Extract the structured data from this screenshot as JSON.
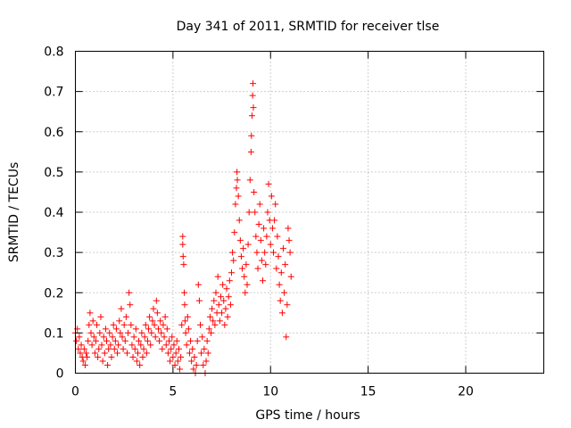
{
  "chart_data": {
    "type": "scatter",
    "title": "Day 341 of 2011, SRMTID for receiver tlse",
    "xlabel": "GPS time / hours",
    "ylabel": "SRMTID / TECUs",
    "xlim": [
      0,
      24
    ],
    "ylim": [
      0,
      0.8
    ],
    "xticks": [
      0,
      5,
      10,
      15,
      20
    ],
    "yticks": [
      0,
      0.1,
      0.2,
      0.3,
      0.4,
      0.5,
      0.6,
      0.7,
      0.8
    ],
    "xtick_labels": [
      "0",
      "5",
      "10",
      "15",
      "20"
    ],
    "ytick_labels": [
      "0",
      "0.1",
      "0.2",
      "0.3",
      "0.4",
      "0.5",
      "0.6",
      "0.7",
      "0.8"
    ],
    "grid": true,
    "marker": "+",
    "marker_color": "#ff0000",
    "series": [
      {
        "name": "SRMTID",
        "points": [
          [
            0.0,
            0.1
          ],
          [
            0.05,
            0.08
          ],
          [
            0.1,
            0.11
          ],
          [
            0.15,
            0.06
          ],
          [
            0.2,
            0.09
          ],
          [
            0.25,
            0.05
          ],
          [
            0.3,
            0.07
          ],
          [
            0.35,
            0.04
          ],
          [
            0.4,
            0.03
          ],
          [
            0.45,
            0.06
          ],
          [
            0.5,
            0.02
          ],
          [
            0.55,
            0.05
          ],
          [
            0.6,
            0.04
          ],
          [
            0.65,
            0.08
          ],
          [
            0.7,
            0.12
          ],
          [
            0.75,
            0.15
          ],
          [
            0.8,
            0.1
          ],
          [
            0.85,
            0.07
          ],
          [
            0.9,
            0.13
          ],
          [
            0.95,
            0.09
          ],
          [
            1.0,
            0.05
          ],
          [
            1.05,
            0.08
          ],
          [
            1.1,
            0.12
          ],
          [
            1.15,
            0.04
          ],
          [
            1.2,
            0.06
          ],
          [
            1.25,
            0.1
          ],
          [
            1.3,
            0.14
          ],
          [
            1.35,
            0.07
          ],
          [
            1.4,
            0.03
          ],
          [
            1.45,
            0.09
          ],
          [
            1.5,
            0.05
          ],
          [
            1.55,
            0.11
          ],
          [
            1.6,
            0.08
          ],
          [
            1.65,
            0.02
          ],
          [
            1.7,
            0.06
          ],
          [
            1.75,
            0.1
          ],
          [
            1.8,
            0.07
          ],
          [
            1.85,
            0.04
          ],
          [
            1.9,
            0.09
          ],
          [
            1.95,
            0.12
          ],
          [
            2.0,
            0.06
          ],
          [
            2.05,
            0.08
          ],
          [
            2.1,
            0.11
          ],
          [
            2.15,
            0.05
          ],
          [
            2.2,
            0.07
          ],
          [
            2.25,
            0.13
          ],
          [
            2.3,
            0.1
          ],
          [
            2.35,
            0.16
          ],
          [
            2.4,
            0.09
          ],
          [
            2.45,
            0.06
          ],
          [
            2.5,
            0.12
          ],
          [
            2.55,
            0.08
          ],
          [
            2.6,
            0.14
          ],
          [
            2.65,
            0.05
          ],
          [
            2.7,
            0.1
          ],
          [
            2.75,
            0.2
          ],
          [
            2.8,
            0.17
          ],
          [
            2.85,
            0.12
          ],
          [
            2.9,
            0.07
          ],
          [
            2.95,
            0.04
          ],
          [
            3.0,
            0.09
          ],
          [
            3.05,
            0.06
          ],
          [
            3.1,
            0.11
          ],
          [
            3.15,
            0.03
          ],
          [
            3.2,
            0.05
          ],
          [
            3.25,
            0.08
          ],
          [
            3.3,
            0.02
          ],
          [
            3.35,
            0.07
          ],
          [
            3.4,
            0.1
          ],
          [
            3.45,
            0.04
          ],
          [
            3.5,
            0.06
          ],
          [
            3.55,
            0.09
          ],
          [
            3.6,
            0.12
          ],
          [
            3.65,
            0.05
          ],
          [
            3.7,
            0.08
          ],
          [
            3.75,
            0.11
          ],
          [
            3.8,
            0.14
          ],
          [
            3.85,
            0.07
          ],
          [
            3.9,
            0.1
          ],
          [
            3.95,
            0.13
          ],
          [
            4.0,
            0.16
          ],
          [
            4.05,
            0.12
          ],
          [
            4.1,
            0.09
          ],
          [
            4.15,
            0.18
          ],
          [
            4.2,
            0.15
          ],
          [
            4.25,
            0.11
          ],
          [
            4.3,
            0.08
          ],
          [
            4.35,
            0.13
          ],
          [
            4.4,
            0.1
          ],
          [
            4.45,
            0.06
          ],
          [
            4.5,
            0.12
          ],
          [
            4.55,
            0.09
          ],
          [
            4.6,
            0.14
          ],
          [
            4.65,
            0.07
          ],
          [
            4.7,
            0.11
          ],
          [
            4.75,
            0.05
          ],
          [
            4.8,
            0.08
          ],
          [
            4.85,
            0.03
          ],
          [
            4.9,
            0.06
          ],
          [
            4.95,
            0.09
          ],
          [
            5.0,
            0.04
          ],
          [
            5.05,
            0.07
          ],
          [
            5.1,
            0.02
          ],
          [
            5.15,
            0.05
          ],
          [
            5.2,
            0.08
          ],
          [
            5.25,
            0.03
          ],
          [
            5.3,
            0.06
          ],
          [
            5.35,
            0.01
          ],
          [
            5.4,
            0.04
          ],
          [
            5.45,
            0.12
          ],
          [
            5.5,
            0.34
          ],
          [
            5.5,
            0.32
          ],
          [
            5.52,
            0.29
          ],
          [
            5.55,
            0.27
          ],
          [
            5.58,
            0.2
          ],
          [
            5.6,
            0.17
          ],
          [
            5.62,
            0.13
          ],
          [
            5.65,
            0.1
          ],
          [
            5.7,
            0.07
          ],
          [
            5.75,
            0.14
          ],
          [
            5.8,
            0.11
          ],
          [
            5.85,
            0.05
          ],
          [
            5.9,
            0.08
          ],
          [
            5.95,
            0.03
          ],
          [
            6.0,
            0.06
          ],
          [
            6.05,
            0.01
          ],
          [
            6.1,
            0.04
          ],
          [
            6.15,
            0.0
          ],
          [
            6.2,
            0.02
          ],
          [
            6.25,
            0.08
          ],
          [
            6.3,
            0.22
          ],
          [
            6.35,
            0.18
          ],
          [
            6.4,
            0.12
          ],
          [
            6.45,
            0.05
          ],
          [
            6.5,
            0.09
          ],
          [
            6.55,
            0.02
          ],
          [
            6.6,
            0.06
          ],
          [
            6.65,
            0.0
          ],
          [
            6.7,
            0.03
          ],
          [
            6.75,
            0.08
          ],
          [
            6.8,
            0.05
          ],
          [
            6.85,
            0.11
          ],
          [
            6.9,
            0.14
          ],
          [
            6.95,
            0.1
          ],
          [
            7.0,
            0.16
          ],
          [
            7.05,
            0.13
          ],
          [
            7.1,
            0.18
          ],
          [
            7.15,
            0.12
          ],
          [
            7.2,
            0.2
          ],
          [
            7.25,
            0.15
          ],
          [
            7.3,
            0.24
          ],
          [
            7.35,
            0.17
          ],
          [
            7.4,
            0.13
          ],
          [
            7.45,
            0.19
          ],
          [
            7.5,
            0.15
          ],
          [
            7.55,
            0.22
          ],
          [
            7.6,
            0.18
          ],
          [
            7.65,
            0.12
          ],
          [
            7.7,
            0.16
          ],
          [
            7.75,
            0.21
          ],
          [
            7.8,
            0.14
          ],
          [
            7.85,
            0.19
          ],
          [
            7.9,
            0.23
          ],
          [
            7.95,
            0.17
          ],
          [
            8.0,
            0.25
          ],
          [
            8.05,
            0.3
          ],
          [
            8.1,
            0.28
          ],
          [
            8.15,
            0.35
          ],
          [
            8.2,
            0.42
          ],
          [
            8.25,
            0.46
          ],
          [
            8.28,
            0.5
          ],
          [
            8.3,
            0.48
          ],
          [
            8.35,
            0.44
          ],
          [
            8.4,
            0.38
          ],
          [
            8.45,
            0.33
          ],
          [
            8.5,
            0.29
          ],
          [
            8.55,
            0.26
          ],
          [
            8.6,
            0.31
          ],
          [
            8.65,
            0.24
          ],
          [
            8.7,
            0.2
          ],
          [
            8.75,
            0.27
          ],
          [
            8.8,
            0.22
          ],
          [
            8.85,
            0.32
          ],
          [
            8.9,
            0.4
          ],
          [
            8.95,
            0.48
          ],
          [
            9.0,
            0.55
          ],
          [
            9.02,
            0.59
          ],
          [
            9.05,
            0.64
          ],
          [
            9.08,
            0.69
          ],
          [
            9.1,
            0.72
          ],
          [
            9.12,
            0.66
          ],
          [
            9.15,
            0.45
          ],
          [
            9.2,
            0.4
          ],
          [
            9.25,
            0.34
          ],
          [
            9.3,
            0.3
          ],
          [
            9.35,
            0.26
          ],
          [
            9.4,
            0.37
          ],
          [
            9.45,
            0.42
          ],
          [
            9.5,
            0.33
          ],
          [
            9.55,
            0.28
          ],
          [
            9.6,
            0.23
          ],
          [
            9.65,
            0.36
          ],
          [
            9.7,
            0.3
          ],
          [
            9.75,
            0.27
          ],
          [
            9.8,
            0.34
          ],
          [
            9.85,
            0.4
          ],
          [
            9.9,
            0.47
          ],
          [
            9.95,
            0.38
          ],
          [
            10.0,
            0.32
          ],
          [
            10.05,
            0.44
          ],
          [
            10.1,
            0.36
          ],
          [
            10.15,
            0.3
          ],
          [
            10.2,
            0.38
          ],
          [
            10.25,
            0.42
          ],
          [
            10.3,
            0.26
          ],
          [
            10.35,
            0.34
          ],
          [
            10.4,
            0.29
          ],
          [
            10.45,
            0.22
          ],
          [
            10.5,
            0.18
          ],
          [
            10.55,
            0.25
          ],
          [
            10.6,
            0.15
          ],
          [
            10.65,
            0.31
          ],
          [
            10.7,
            0.2
          ],
          [
            10.75,
            0.27
          ],
          [
            10.8,
            0.09
          ],
          [
            10.85,
            0.17
          ],
          [
            10.9,
            0.36
          ],
          [
            10.95,
            0.33
          ],
          [
            11.0,
            0.3
          ],
          [
            11.05,
            0.24
          ]
        ]
      }
    ]
  }
}
